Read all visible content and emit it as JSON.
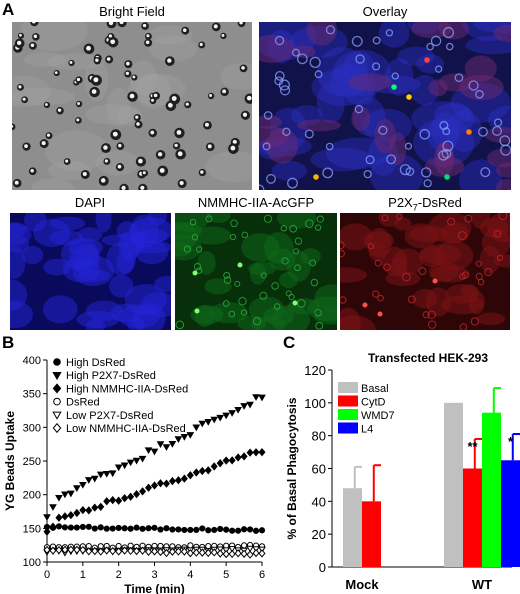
{
  "panel_a": {
    "letter": "A",
    "images": [
      {
        "label": "Bright Field",
        "kind": "brightfield"
      },
      {
        "label": "Overlay",
        "kind": "overlay"
      },
      {
        "label": "DAPI",
        "kind": "dapi"
      },
      {
        "label": "NMMHC-IIA-AcGFP",
        "kind": "gfp"
      },
      {
        "label": "P2X7-DsRed",
        "kind": "dsred",
        "label_base": "P2X",
        "label_sub": "7",
        "label_rest": "-DsRed"
      }
    ]
  },
  "panel_b": {
    "letter": "B"
  },
  "panel_c": {
    "letter": "C"
  },
  "chart_data": [
    {
      "type": "scatter",
      "title": "",
      "xlabel": "Time (min)",
      "ylabel": "YG Beads Uptake",
      "xlim": [
        0,
        6
      ],
      "ylim": [
        100,
        400
      ],
      "xticks": [
        "0",
        "1",
        "2",
        "3",
        "4",
        "5",
        "6"
      ],
      "yticks": [
        "100",
        "150",
        "200",
        "250",
        "300",
        "350",
        "400"
      ],
      "legend_placement": "top-left",
      "series": [
        {
          "name": "High DsRed",
          "marker": "circle-filled",
          "start": 152,
          "end": 147
        },
        {
          "name": "High P2X7-DsRed",
          "marker": "triangle-down-filled",
          "start": 167,
          "end": 346
        },
        {
          "name": "High NMMHC-IIA-DsRed",
          "marker": "diamond-filled",
          "start": 145,
          "end": 266
        },
        {
          "name": "DsRed",
          "marker": "circle-open",
          "start": 122,
          "end": 124
        },
        {
          "name": "Low P2X7-DsRed",
          "marker": "triangle-down-open",
          "start": 115,
          "end": 119
        },
        {
          "name": "Low NMMHC-IIA-DsRed",
          "marker": "diamond-open",
          "start": 118,
          "end": 112
        }
      ]
    },
    {
      "type": "bar",
      "title": "Transfected HEK-293",
      "xlabel": "",
      "ylabel": "% of Basal Phagocytosis",
      "ylim": [
        0,
        120
      ],
      "yticks": [
        "0",
        "20",
        "40",
        "60",
        "80",
        "100",
        "120"
      ],
      "categories": [
        "Mock",
        "WT"
      ],
      "legend_placement": "top-left",
      "series": [
        {
          "name": "Basal",
          "color": "#c0c0c0",
          "values": [
            48,
            100
          ],
          "errors": [
            13,
            0
          ],
          "sig": [
            "",
            ""
          ]
        },
        {
          "name": "CytD",
          "color": "#ff0000",
          "values": [
            40,
            60
          ],
          "errors": [
            22,
            18
          ],
          "sig": [
            "",
            "**"
          ]
        },
        {
          "name": "WMD7",
          "color": "#00ff00",
          "values": [
            null,
            94
          ],
          "errors": [
            null,
            15
          ],
          "sig": [
            "",
            ""
          ]
        },
        {
          "name": "L4",
          "color": "#0000ff",
          "values": [
            null,
            65
          ],
          "errors": [
            null,
            16
          ],
          "sig": [
            "",
            "*"
          ]
        }
      ]
    }
  ]
}
